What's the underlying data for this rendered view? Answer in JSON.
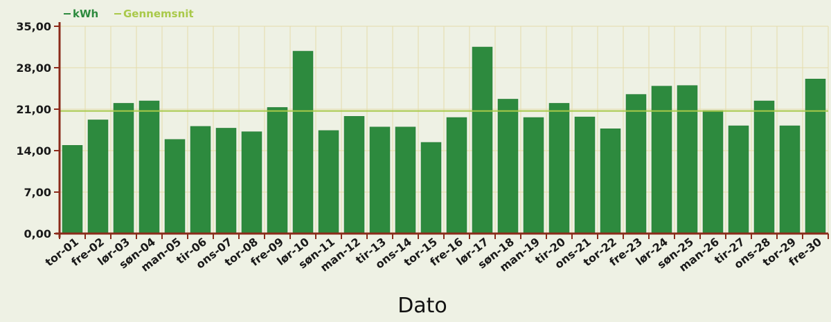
{
  "chart_data": {
    "type": "bar",
    "title": "",
    "xlabel": "Dato",
    "ylabel": "",
    "ylim": [
      0,
      35
    ],
    "yticks": [
      "0,00",
      "7,00",
      "14,00",
      "21,00",
      "28,00",
      "35,00"
    ],
    "ytick_values": [
      0,
      7,
      14,
      21,
      28,
      35
    ],
    "grid": true,
    "legend_position": "top-left",
    "categories": [
      "tor-01",
      "fre-02",
      "lør-03",
      "søn-04",
      "man-05",
      "tir-06",
      "ons-07",
      "tor-08",
      "fre-09",
      "lør-10",
      "søn-11",
      "man-12",
      "tir-13",
      "ons-14",
      "tor-15",
      "fre-16",
      "lør-17",
      "søn-18",
      "man-19",
      "tir-20",
      "ons-21",
      "tor-22",
      "fre-23",
      "lør-24",
      "søn-25",
      "man-26",
      "tir-27",
      "ons-28",
      "tor-29",
      "fre-30"
    ],
    "series": [
      {
        "name": "kWh",
        "type": "bar",
        "values": [
          14.9,
          19.2,
          22.0,
          22.4,
          15.9,
          18.1,
          17.8,
          17.2,
          21.3,
          30.8,
          17.4,
          19.8,
          18.0,
          18.0,
          15.4,
          19.6,
          31.5,
          22.7,
          19.6,
          22.0,
          19.7,
          17.7,
          23.5,
          24.9,
          25.0,
          20.8,
          18.2,
          22.4,
          18.2,
          26.1
        ]
      },
      {
        "name": "Gennemsnit",
        "type": "line",
        "value": 20.7
      }
    ],
    "colors": {
      "bar": "#2d8a3e",
      "bar_edge": "#267a34",
      "average": "#a9c94a",
      "axis": "#8b2a1a",
      "grid": "#e4dcaa",
      "legend_kwh": "#2d8a3e",
      "legend_avg": "#a9c94a"
    }
  }
}
